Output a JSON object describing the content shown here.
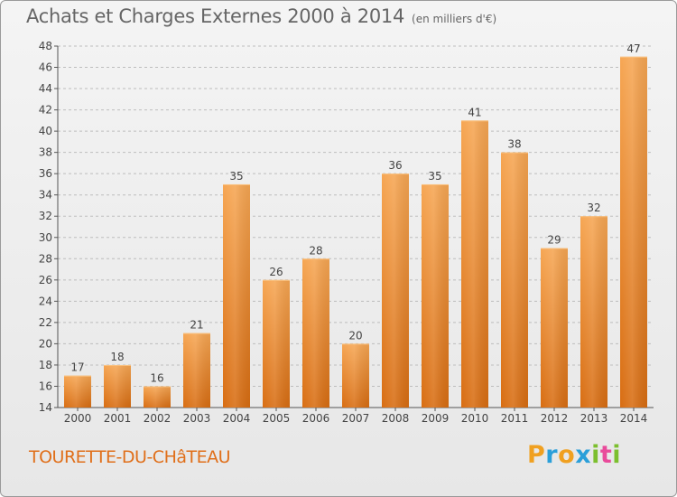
{
  "chart_data": {
    "type": "bar",
    "title": "Achats et Charges Externes 2000 à 2014",
    "subtitle": "(en milliers d'€)",
    "categories": [
      "2000",
      "2001",
      "2002",
      "2003",
      "2004",
      "2005",
      "2006",
      "2007",
      "2008",
      "2009",
      "2010",
      "2011",
      "2012",
      "2013",
      "2014"
    ],
    "values": [
      17,
      18,
      16,
      21,
      35,
      26,
      28,
      20,
      36,
      35,
      41,
      38,
      29,
      32,
      47
    ],
    "ylim": [
      14,
      48
    ],
    "yticks": [
      14,
      16,
      18,
      20,
      22,
      24,
      26,
      28,
      30,
      32,
      34,
      36,
      38,
      40,
      42,
      44,
      46,
      48
    ],
    "grid": true,
    "bar_color": "#f08a2c",
    "bar_color_light": "#f6a653",
    "bar_color_dark": "#d86d12"
  },
  "commune": "TOURETTE-DU-CHâTEAU",
  "logo": {
    "letters": [
      "P",
      "r",
      "o",
      "x",
      "i",
      "t",
      "i"
    ],
    "colors": [
      "#f0a020",
      "#2b9fd9",
      "#f0a020",
      "#2b9fd9",
      "#7cbf2e",
      "#e94b9b",
      "#7cbf2e"
    ]
  }
}
